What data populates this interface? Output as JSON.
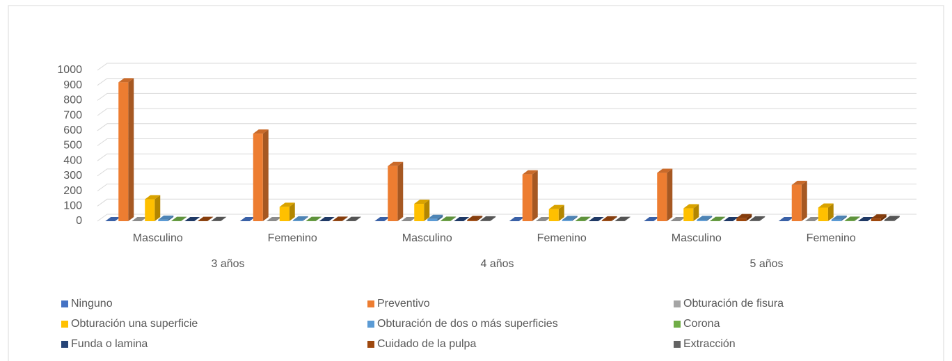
{
  "chart_data": {
    "type": "bar3d",
    "categories": [
      "Masculino",
      "Femenino",
      "Masculino",
      "Femenino",
      "Masculino",
      "Femenino"
    ],
    "category_groups": [
      "3 años",
      "4 años",
      "5 años"
    ],
    "ylim": [
      0,
      1000
    ],
    "yticks": [
      0,
      100,
      200,
      300,
      400,
      500,
      600,
      700,
      800,
      900,
      1000
    ],
    "grid": true,
    "legend": "bottom",
    "series": [
      {
        "name": "Ninguno",
        "color": "#4472c4",
        "values": [
          0,
          0,
          0,
          0,
          0,
          0
        ]
      },
      {
        "name": "Preventivo",
        "color": "#ed7d31",
        "values": [
          920,
          580,
          365,
          310,
          320,
          240
        ]
      },
      {
        "name": "Obturación de fisura",
        "color": "#a5a5a5",
        "values": [
          0,
          0,
          0,
          0,
          0,
          0
        ]
      },
      {
        "name": "Obturación una superficie",
        "color": "#ffc000",
        "values": [
          145,
          95,
          115,
          80,
          85,
          90
        ]
      },
      {
        "name": "Obturación de dos o más superficies",
        "color": "#5b9bd5",
        "values": [
          10,
          5,
          15,
          8,
          8,
          10
        ]
      },
      {
        "name": "Corona",
        "color": "#70ad47",
        "values": [
          2,
          2,
          3,
          2,
          2,
          3
        ]
      },
      {
        "name": "Funda o lamina",
        "color": "#264478",
        "values": [
          0,
          0,
          0,
          0,
          0,
          0
        ]
      },
      {
        "name": "Cuidado de la pulpa",
        "color": "#9e480e",
        "values": [
          2,
          3,
          8,
          5,
          20,
          18
        ]
      },
      {
        "name": "Extracción",
        "color": "#636363",
        "values": [
          1,
          2,
          5,
          2,
          5,
          8
        ]
      }
    ]
  }
}
